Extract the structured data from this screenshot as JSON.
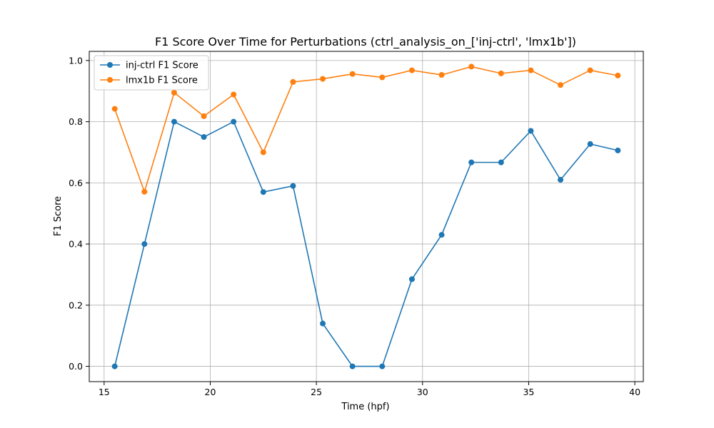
{
  "chart_data": {
    "type": "line",
    "title": "F1 Score Over Time for Perturbations (ctrl_analysis_on_['inj-ctrl', 'lmx1b'])",
    "xlabel": "Time (hpf)",
    "ylabel": "F1 Score",
    "xlim": [
      14.3,
      40.4
    ],
    "ylim": [
      -0.05,
      1.03
    ],
    "xticks": [
      15,
      20,
      25,
      30,
      35,
      40
    ],
    "yticks": [
      0.0,
      0.2,
      0.4,
      0.6,
      0.8,
      1.0
    ],
    "xtick_labels": [
      "15",
      "20",
      "25",
      "30",
      "35",
      "40"
    ],
    "ytick_labels": [
      "0.0",
      "0.2",
      "0.4",
      "0.6",
      "0.8",
      "1.0"
    ],
    "grid": true,
    "legend_position": "top-left",
    "x": [
      15.5,
      16.9,
      18.3,
      19.7,
      21.1,
      22.5,
      23.9,
      25.3,
      26.7,
      28.1,
      29.5,
      30.9,
      32.3,
      33.7,
      35.1,
      36.5,
      37.9,
      39.2
    ],
    "series": [
      {
        "name": "inj-ctrl F1 Score",
        "color": "#1f77b4",
        "values": [
          0.0,
          0.4,
          0.8,
          0.75,
          0.8,
          0.57,
          0.59,
          0.14,
          0.0,
          0.0,
          0.285,
          0.43,
          0.667,
          0.667,
          0.77,
          0.61,
          0.727,
          0.706
        ]
      },
      {
        "name": "lmx1b F1 Score",
        "color": "#ff7f0e",
        "values": [
          0.842,
          0.571,
          0.895,
          0.818,
          0.889,
          0.7,
          0.93,
          0.94,
          0.956,
          0.945,
          0.968,
          0.953,
          0.98,
          0.958,
          0.968,
          0.92,
          0.968,
          0.951
        ]
      }
    ]
  }
}
